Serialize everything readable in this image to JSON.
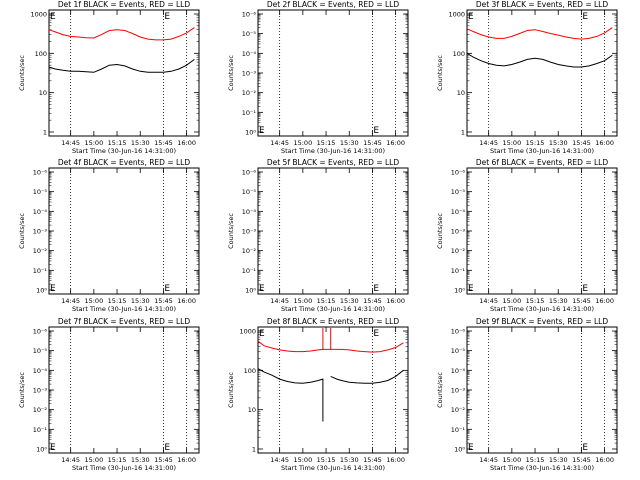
{
  "chart_data": [
    {
      "id": "det1f",
      "type": "line",
      "title": "Det 1f BLACK = Events, RED = LLD",
      "xlabel": "Start Time (30-Jun-16 14:31:00)",
      "ylabel": "Counts/sec",
      "yscale": "log",
      "y_tick_labels": [
        "1",
        "10",
        "100",
        "1000"
      ],
      "x_tick_labels": [
        "14:45",
        "15:00",
        "15:15",
        "15:30",
        "15:45",
        "16:00"
      ],
      "ylim": [
        1,
        1200
      ],
      "vlines": [
        "14:45",
        "15:45",
        "16:00"
      ],
      "markers": [
        {
          "label": "E",
          "position": "top-left"
        },
        {
          "label": "E",
          "position": "top",
          "time": "15:45"
        }
      ],
      "series": [
        {
          "color": "#ff0000",
          "points": [
            [
              "14:31",
              400
            ],
            [
              "14:35",
              350
            ],
            [
              "14:40",
              300
            ],
            [
              "14:45",
              270
            ],
            [
              "14:50",
              260
            ],
            [
              "14:55",
              250
            ],
            [
              "15:00",
              245
            ],
            [
              "15:05",
              300
            ],
            [
              "15:10",
              380
            ],
            [
              "15:15",
              400
            ],
            [
              "15:20",
              380
            ],
            [
              "15:25",
              320
            ],
            [
              "15:30",
              260
            ],
            [
              "15:35",
              230
            ],
            [
              "15:40",
              220
            ],
            [
              "15:45",
              220
            ],
            [
              "15:50",
              230
            ],
            [
              "15:55",
              270
            ],
            [
              "16:00",
              330
            ],
            [
              "16:05",
              450
            ]
          ]
        },
        {
          "color": "#000000",
          "points": [
            [
              "14:31",
              45
            ],
            [
              "14:35",
              40
            ],
            [
              "14:40",
              37
            ],
            [
              "14:45",
              35
            ],
            [
              "14:50",
              35
            ],
            [
              "14:55",
              34
            ],
            [
              "15:00",
              33
            ],
            [
              "15:05",
              40
            ],
            [
              "15:10",
              50
            ],
            [
              "15:15",
              52
            ],
            [
              "15:20",
              48
            ],
            [
              "15:25",
              40
            ],
            [
              "15:30",
              35
            ],
            [
              "15:35",
              33
            ],
            [
              "15:40",
              33
            ],
            [
              "15:45",
              33
            ],
            [
              "15:50",
              35
            ],
            [
              "15:55",
              40
            ],
            [
              "16:00",
              50
            ],
            [
              "16:05",
              70
            ]
          ]
        }
      ]
    },
    {
      "id": "det2f",
      "type": "line",
      "title": "Det 2f BLACK = Events, RED = LLD",
      "xlabel": "Start Time (30-Jun-16 14:31:00)",
      "ylabel": "Counts/sec",
      "yscale": "log",
      "y_tick_labels": [
        "10⁰",
        "10⁻¹",
        "10⁻²",
        "10⁻³",
        "10⁻⁴",
        "10⁻⁵",
        "10⁻⁶"
      ],
      "x_tick_labels": [
        "14:45",
        "15:00",
        "15:15",
        "15:30",
        "15:45",
        "16:00"
      ],
      "vlines": [
        "14:45",
        "15:45",
        "16:00"
      ],
      "markers": [
        {
          "label": "E",
          "position": "bottom-left"
        },
        {
          "label": "E",
          "position": "bottom",
          "time": "15:45"
        }
      ],
      "series": []
    },
    {
      "id": "det3f",
      "type": "line",
      "title": "Det 3f BLACK = Events, RED = LLD",
      "xlabel": "Start Time (30-Jun-16 14:31:00)",
      "ylabel": "Counts/sec",
      "yscale": "log",
      "y_tick_labels": [
        "1",
        "10",
        "100",
        "1000"
      ],
      "x_tick_labels": [
        "14:45",
        "15:00",
        "15:15",
        "15:30",
        "15:45",
        "16:00"
      ],
      "ylim": [
        1,
        1200
      ],
      "vlines": [
        "14:45",
        "15:45",
        "16:00"
      ],
      "markers": [
        {
          "label": "E",
          "position": "top-left"
        },
        {
          "label": "E",
          "position": "top",
          "time": "15:45"
        }
      ],
      "series": [
        {
          "color": "#ff0000",
          "points": [
            [
              "14:31",
              420
            ],
            [
              "14:35",
              360
            ],
            [
              "14:40",
              300
            ],
            [
              "14:45",
              260
            ],
            [
              "14:50",
              240
            ],
            [
              "14:55",
              240
            ],
            [
              "15:00",
              270
            ],
            [
              "15:05",
              320
            ],
            [
              "15:10",
              380
            ],
            [
              "15:15",
              400
            ],
            [
              "15:20",
              360
            ],
            [
              "15:25",
              320
            ],
            [
              "15:30",
              290
            ],
            [
              "15:35",
              260
            ],
            [
              "15:40",
              240
            ],
            [
              "15:45",
              230
            ],
            [
              "15:50",
              240
            ],
            [
              "15:55",
              270
            ],
            [
              "16:00",
              330
            ],
            [
              "16:05",
              450
            ]
          ]
        },
        {
          "color": "#000000",
          "points": [
            [
              "14:31",
              100
            ],
            [
              "14:35",
              80
            ],
            [
              "14:40",
              65
            ],
            [
              "14:45",
              55
            ],
            [
              "14:50",
              50
            ],
            [
              "14:55",
              48
            ],
            [
              "15:00",
              52
            ],
            [
              "15:05",
              60
            ],
            [
              "15:10",
              70
            ],
            [
              "15:15",
              75
            ],
            [
              "15:20",
              70
            ],
            [
              "15:25",
              60
            ],
            [
              "15:30",
              52
            ],
            [
              "15:35",
              48
            ],
            [
              "15:40",
              45
            ],
            [
              "15:45",
              45
            ],
            [
              "15:50",
              48
            ],
            [
              "15:55",
              55
            ],
            [
              "16:00",
              65
            ],
            [
              "16:05",
              90
            ]
          ]
        }
      ]
    },
    {
      "id": "det4f",
      "type": "line",
      "title": "Det 4f BLACK = Events, RED = LLD",
      "xlabel": "Start Time (30-Jun-16 14:31:00)",
      "ylabel": "Counts/sec",
      "yscale": "log",
      "y_tick_labels": [
        "10⁰",
        "10⁻¹",
        "10⁻²",
        "10⁻³",
        "10⁻⁴",
        "10⁻⁵",
        "10⁻⁶"
      ],
      "x_tick_labels": [
        "14:45",
        "15:00",
        "15:15",
        "15:30",
        "15:45",
        "16:00"
      ],
      "vlines": [
        "14:45",
        "15:45",
        "16:00"
      ],
      "markers": [
        {
          "label": "E",
          "position": "bottom-left"
        },
        {
          "label": "E",
          "position": "bottom",
          "time": "15:45"
        }
      ],
      "series": []
    },
    {
      "id": "det5f",
      "type": "line",
      "title": "Det 5f BLACK = Events, RED = LLD",
      "xlabel": "Start Time (30-Jun-16 14:31:00)",
      "ylabel": "Counts/sec",
      "yscale": "log",
      "y_tick_labels": [
        "10⁰",
        "10⁻¹",
        "10⁻²",
        "10⁻³",
        "10⁻⁴",
        "10⁻⁵",
        "10⁻⁶"
      ],
      "x_tick_labels": [
        "14:45",
        "15:00",
        "15:15",
        "15:30",
        "15:45",
        "16:00"
      ],
      "vlines": [
        "14:45",
        "15:45",
        "16:00"
      ],
      "markers": [
        {
          "label": "E",
          "position": "bottom-left"
        },
        {
          "label": "E",
          "position": "bottom",
          "time": "15:45"
        }
      ],
      "series": []
    },
    {
      "id": "det6f",
      "type": "line",
      "title": "Det 6f BLACK = Events, RED = LLD",
      "xlabel": "Start Time (30-Jun-16 14:31:00)",
      "ylabel": "Counts/sec",
      "yscale": "log",
      "y_tick_labels": [
        "10⁰",
        "10⁻¹",
        "10⁻²",
        "10⁻³",
        "10⁻⁴",
        "10⁻⁵",
        "10⁻⁶"
      ],
      "x_tick_labels": [
        "14:45",
        "15:00",
        "15:15",
        "15:30",
        "15:45",
        "16:00"
      ],
      "vlines": [
        "14:45",
        "15:45",
        "16:00"
      ],
      "markers": [
        {
          "label": "E",
          "position": "bottom-left"
        },
        {
          "label": "E",
          "position": "bottom",
          "time": "15:45"
        }
      ],
      "series": []
    },
    {
      "id": "det7f",
      "type": "line",
      "title": "Det 7f BLACK = Events, RED = LLD",
      "xlabel": "Start Time (30-Jun-16 14:31:00)",
      "ylabel": "Counts/sec",
      "yscale": "log",
      "y_tick_labels": [
        "10⁰",
        "10⁻¹",
        "10⁻²",
        "10⁻³",
        "10⁻⁴",
        "10⁻⁵",
        "10⁻⁶"
      ],
      "x_tick_labels": [
        "14:45",
        "15:00",
        "15:15",
        "15:30",
        "15:45",
        "16:00"
      ],
      "vlines": [
        "14:45",
        "15:45",
        "16:00"
      ],
      "markers": [
        {
          "label": "E",
          "position": "bottom-left"
        },
        {
          "label": "E",
          "position": "bottom",
          "time": "15:45"
        }
      ],
      "series": []
    },
    {
      "id": "det8f",
      "type": "line",
      "title": "Det 8f BLACK = Events, RED = LLD",
      "xlabel": "Start Time (30-Jun-16 14:31:00)",
      "ylabel": "Counts/sec",
      "yscale": "log",
      "y_tick_labels": [
        "1",
        "10",
        "100",
        "1000"
      ],
      "x_tick_labels": [
        "14:45",
        "15:00",
        "15:15",
        "15:30",
        "15:45",
        "16:00"
      ],
      "ylim": [
        1,
        1200
      ],
      "vlines": [
        "14:45",
        "15:45",
        "16:00"
      ],
      "markers": [
        {
          "label": "E",
          "position": "top-left"
        },
        {
          "label": "E",
          "position": "top",
          "time": "15:45"
        }
      ],
      "series": [
        {
          "color": "#ff0000",
          "points": [
            [
              "14:31",
              550
            ],
            [
              "14:35",
              420
            ],
            [
              "14:40",
              370
            ],
            [
              "14:45",
              330
            ],
            [
              "14:50",
              310
            ],
            [
              "14:55",
              300
            ],
            [
              "15:00",
              300
            ],
            [
              "15:05",
              310
            ],
            [
              "15:10",
              330
            ],
            [
              "15:13",
              340
            ],
            [
              "15:13",
              1200
            ],
            [
              "15:13",
              340
            ],
            [
              "15:18",
              340
            ],
            [
              "15:18",
              1200
            ],
            [
              "15:18",
              340
            ],
            [
              "15:25",
              340
            ],
            [
              "15:30",
              330
            ],
            [
              "15:35",
              310
            ],
            [
              "15:40",
              300
            ],
            [
              "15:45",
              290
            ],
            [
              "15:50",
              300
            ],
            [
              "15:55",
              330
            ],
            [
              "16:00",
              380
            ],
            [
              "16:05",
              500
            ]
          ]
        },
        {
          "color": "#000000",
          "points": [
            [
              "14:31",
              110
            ],
            [
              "14:35",
              90
            ],
            [
              "14:40",
              75
            ],
            [
              "14:45",
              60
            ],
            [
              "14:50",
              52
            ],
            [
              "14:55",
              48
            ],
            [
              "15:00",
              47
            ],
            [
              "15:05",
              50
            ],
            [
              "15:10",
              55
            ],
            [
              "15:13",
              60
            ],
            [
              "15:13",
              5
            ],
            [
              "15:13",
              60
            ],
            [
              "15:15",
              null
            ],
            [
              "15:18",
              null
            ],
            [
              "15:18",
              70
            ],
            [
              "15:22",
              60
            ],
            [
              "15:25",
              55
            ],
            [
              "15:30",
              50
            ],
            [
              "15:35",
              48
            ],
            [
              "15:40",
              47
            ],
            [
              "15:45",
              47
            ],
            [
              "15:50",
              50
            ],
            [
              "15:55",
              55
            ],
            [
              "16:00",
              70
            ],
            [
              "16:05",
              100
            ]
          ]
        }
      ]
    },
    {
      "id": "det9f",
      "type": "line",
      "title": "Det 9f BLACK = Events, RED = LLD",
      "xlabel": "Start Time (30-Jun-16 14:31:00)",
      "ylabel": "Counts/sec",
      "yscale": "log",
      "y_tick_labels": [
        "10⁰",
        "10⁻¹",
        "10⁻²",
        "10⁻³",
        "10⁻⁴",
        "10⁻⁵",
        "10⁻⁶"
      ],
      "x_tick_labels": [
        "14:45",
        "15:00",
        "15:15",
        "15:30",
        "15:45",
        "16:00"
      ],
      "vlines": [
        "14:45",
        "15:45",
        "16:00"
      ],
      "markers": [
        {
          "label": "E",
          "position": "bottom-left"
        },
        {
          "label": "E",
          "position": "bottom",
          "time": "15:45"
        }
      ],
      "series": []
    }
  ]
}
